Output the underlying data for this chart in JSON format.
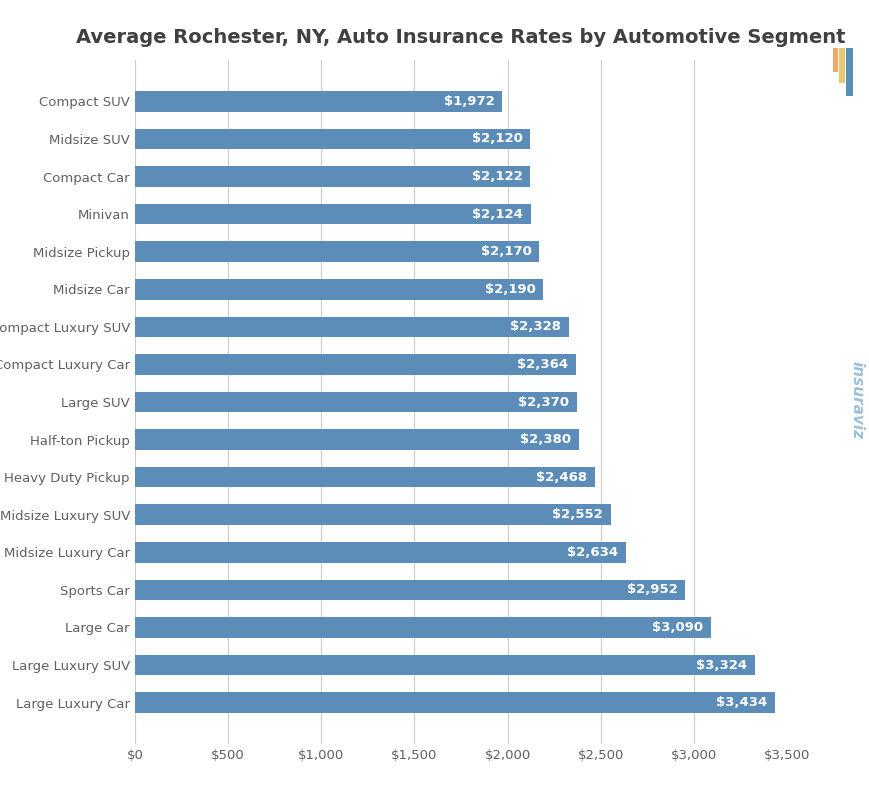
{
  "title": "Average Rochester, NY, Auto Insurance Rates by Automotive Segment",
  "categories": [
    "Large Luxury Car",
    "Large Luxury SUV",
    "Large Car",
    "Sports Car",
    "Midsize Luxury Car",
    "Midsize Luxury SUV",
    "Heavy Duty Pickup",
    "Half-ton Pickup",
    "Large SUV",
    "Compact Luxury Car",
    "Compact Luxury SUV",
    "Midsize Car",
    "Midsize Pickup",
    "Minivan",
    "Compact Car",
    "Midsize SUV",
    "Compact SUV"
  ],
  "values": [
    3434,
    3324,
    3090,
    2952,
    2634,
    2552,
    2468,
    2380,
    2370,
    2364,
    2328,
    2190,
    2170,
    2124,
    2122,
    2120,
    1972
  ],
  "bar_color": "#5b8db8",
  "label_color": "#ffffff",
  "title_color": "#404040",
  "tick_color": "#606060",
  "background_color": "#ffffff",
  "grid_color": "#cccccc",
  "xlim": [
    0,
    3500
  ],
  "xticks": [
    0,
    500,
    1000,
    1500,
    2000,
    2500,
    3000,
    3500
  ],
  "xtick_labels": [
    "$0",
    "$500",
    "$1,000",
    "$1,500",
    "$2,000",
    "$2,500",
    "$3,000",
    "$3,500"
  ],
  "title_fontsize": 14,
  "label_fontsize": 9.5,
  "tick_fontsize": 9.5,
  "watermark_text": "insuraviz",
  "watermark_color_text": "#8ab4d4",
  "watermark_icon_colors": [
    "#f0a868",
    "#e8c870",
    "#5b8db8"
  ],
  "bar_height": 0.55
}
